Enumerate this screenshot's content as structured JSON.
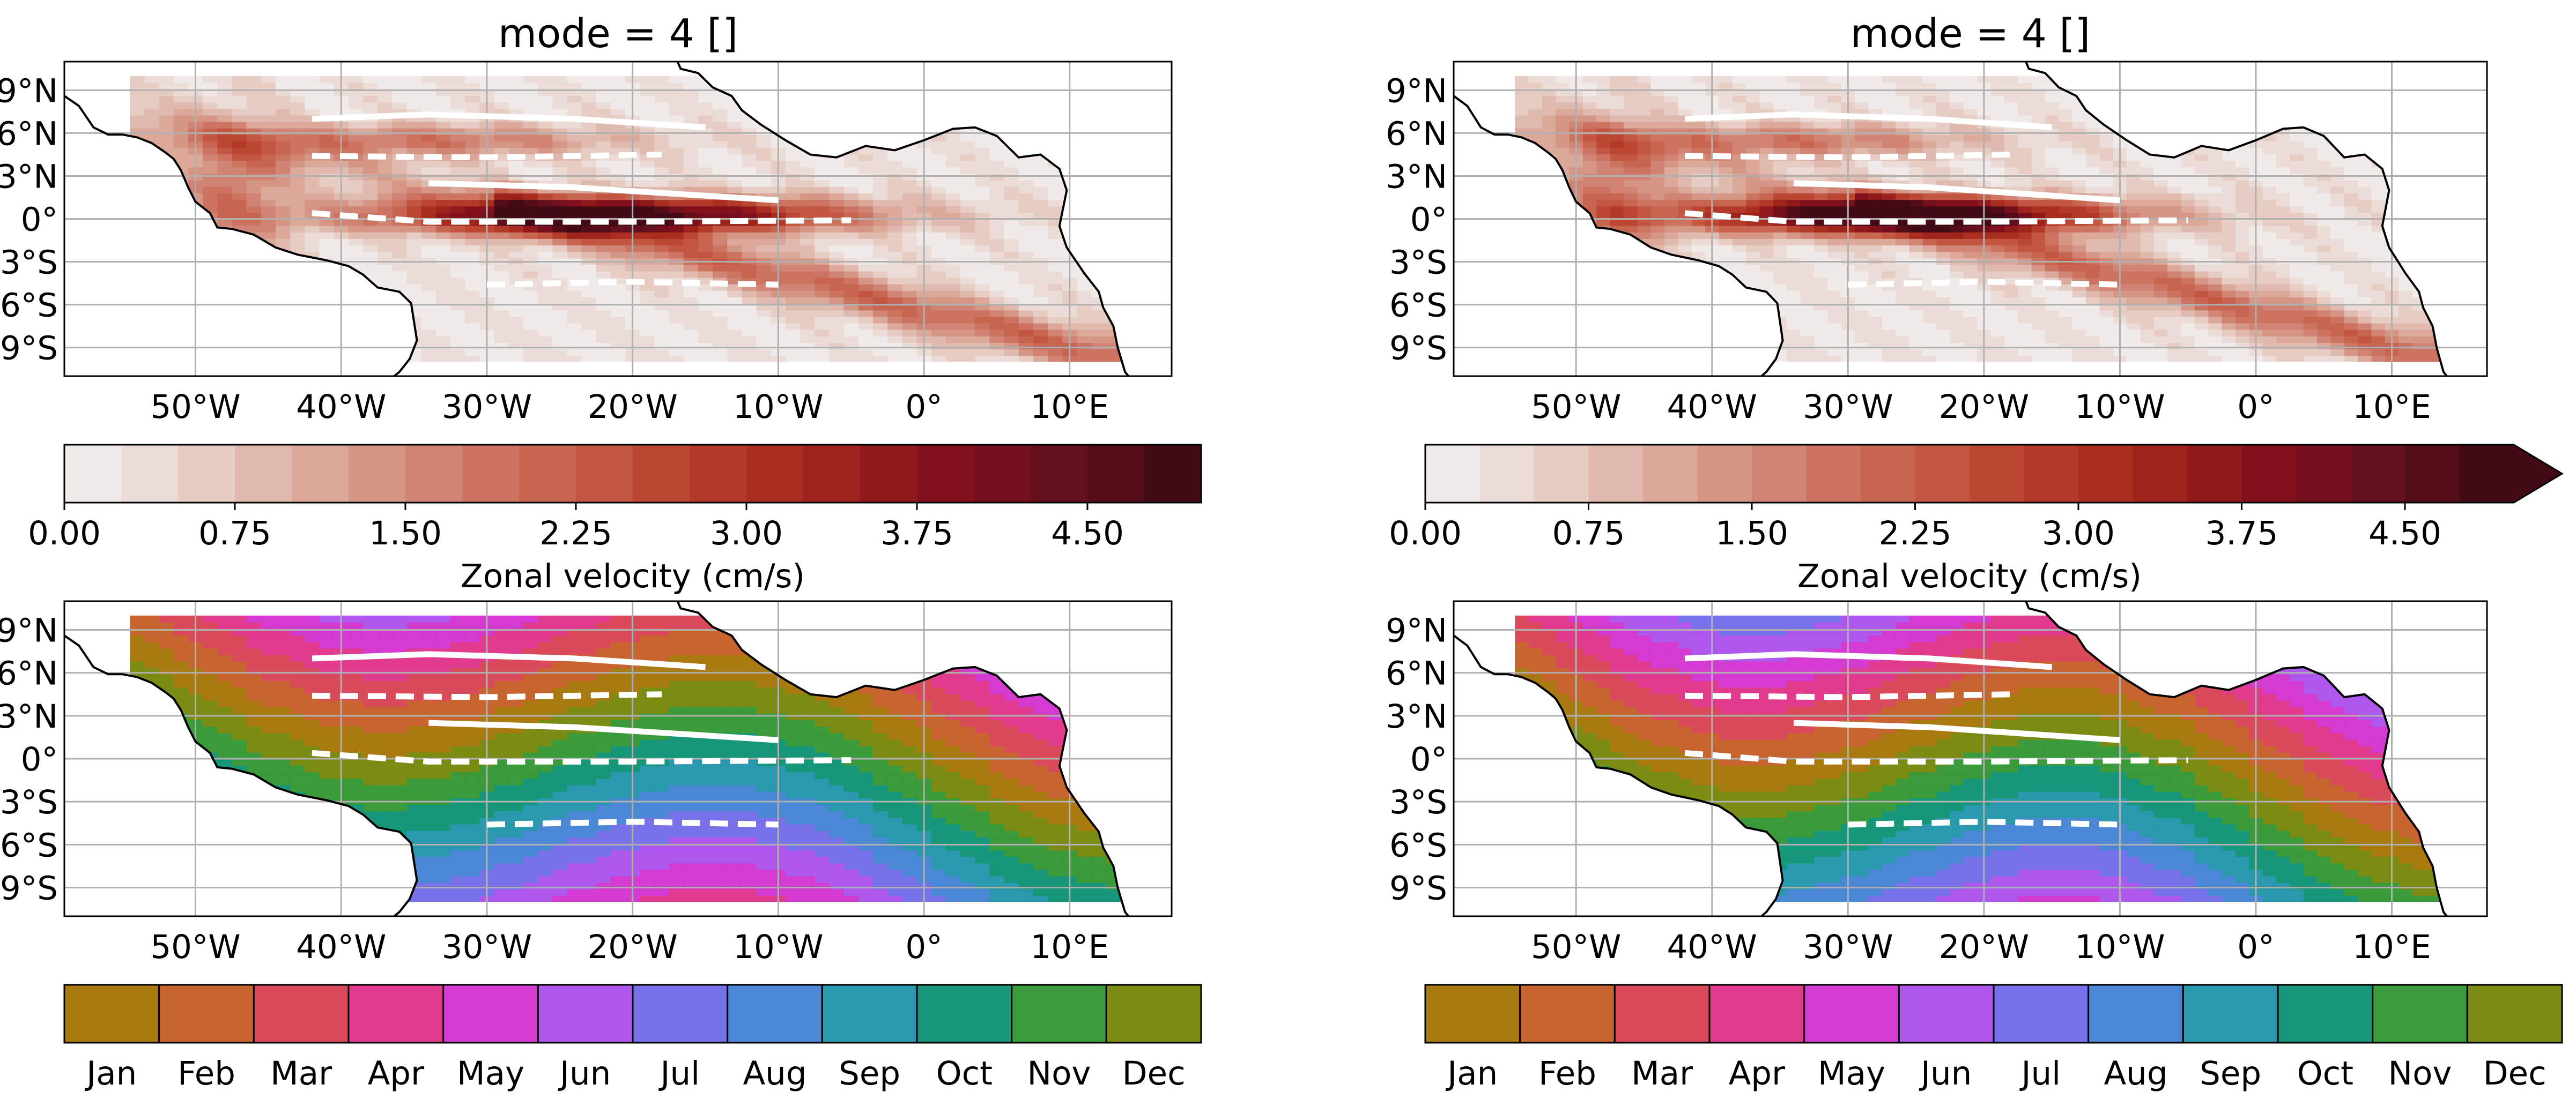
{
  "chart_data": [
    {
      "type": "heatmap",
      "title": "mode = 4 []",
      "x_ticks": [
        "50°W",
        "40°W",
        "30°W",
        "20°W",
        "10°W",
        "0°",
        "10°E"
      ],
      "y_ticks": [
        "9°N",
        "6°N",
        "3°N",
        "0°",
        "3°S",
        "6°S",
        "9°S"
      ],
      "xlim": [
        -59,
        17
      ],
      "ylim": [
        -11,
        11
      ],
      "grid": true,
      "colorbar": {
        "label": "Zonal velocity (cm/s)",
        "ticks": [
          "0.00",
          "0.75",
          "1.50",
          "2.25",
          "3.00",
          "3.75",
          "4.50"
        ],
        "range": [
          0,
          5.0
        ],
        "levels": 20,
        "extend": "neither"
      },
      "peak": {
        "lon": -22,
        "lat": 0,
        "value": 4.8
      }
    },
    {
      "type": "heatmap",
      "title": "mode = 4 []",
      "x_ticks": [
        "50°W",
        "40°W",
        "30°W",
        "20°W",
        "10°W",
        "0°",
        "10°E"
      ],
      "y_ticks": [
        "9°N",
        "6°N",
        "3°N",
        "0°",
        "3°S",
        "6°S",
        "9°S"
      ],
      "xlim": [
        -59,
        17
      ],
      "ylim": [
        -11,
        11
      ],
      "grid": true,
      "colorbar": {
        "label": "Zonal velocity (cm/s)",
        "ticks": [
          "0.00",
          "0.75",
          "1.50",
          "2.25",
          "3.00",
          "3.75",
          "4.50"
        ],
        "range": [
          0,
          5.0
        ],
        "levels": 20,
        "extend": "max"
      },
      "peak": {
        "lon": -27,
        "lat": 0.5,
        "value": 5.2
      }
    },
    {
      "type": "heatmap",
      "x_ticks": [
        "50°W",
        "40°W",
        "30°W",
        "20°W",
        "10°W",
        "0°",
        "10°E"
      ],
      "y_ticks": [
        "9°N",
        "6°N",
        "3°N",
        "0°",
        "3°S",
        "6°S",
        "9°S"
      ],
      "xlim": [
        -59,
        17
      ],
      "ylim": [
        -11,
        11
      ],
      "grid": true,
      "colorbar": {
        "months": [
          "Jan",
          "Feb",
          "Mar",
          "Apr",
          "May",
          "Jun",
          "Jul",
          "Aug",
          "Sep",
          "Oct",
          "Nov",
          "Dec"
        ]
      }
    },
    {
      "type": "heatmap",
      "x_ticks": [
        "50°W",
        "40°W",
        "30°W",
        "20°W",
        "10°W",
        "0°",
        "10°E"
      ],
      "y_ticks": [
        "9°N",
        "6°N",
        "3°N",
        "0°",
        "3°S",
        "6°S",
        "9°S"
      ],
      "xlim": [
        -59,
        17
      ],
      "ylim": [
        -11,
        11
      ],
      "grid": true,
      "colorbar": {
        "months": [
          "Jan",
          "Feb",
          "Mar",
          "Apr",
          "May",
          "Jun",
          "Jul",
          "Aug",
          "Sep",
          "Oct",
          "Nov",
          "Dec"
        ]
      }
    }
  ],
  "colors": {
    "amplitude": [
      "#f0ebe9",
      "#ecdcd7",
      "#e6ccc3",
      "#e0baaf",
      "#dba89a",
      "#d69686",
      "#d18473",
      "#cc7461",
      "#c86550",
      "#c25641",
      "#bb4733",
      "#b33a28",
      "#a92e20",
      "#9e231c",
      "#91191c",
      "#83111d",
      "#74101d",
      "#640f1c",
      "#530d19",
      "#420a14"
    ],
    "months": [
      "#a97a10",
      "#c8642f",
      "#d94a5a",
      "#e03b8c",
      "#d43bd0",
      "#ae58ee",
      "#7872ea",
      "#4a88d6",
      "#2a98ad",
      "#16977a",
      "#3b9a3a",
      "#7a8c14"
    ],
    "mask": "#f0ebe9",
    "grid": "#b0b0b0",
    "jets": "#ffffff"
  }
}
